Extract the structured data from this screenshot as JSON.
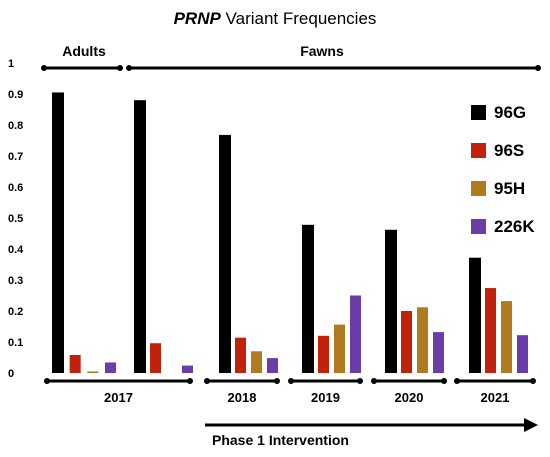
{
  "chart_data": {
    "type": "bar",
    "title_italic": "PRNP",
    "title_rest": " Variant Frequencies",
    "ylim": [
      0,
      1
    ],
    "yticks": [
      "0",
      "0.1",
      "0.2",
      "0.3",
      "0.4",
      "0.5",
      "0.6",
      "0.7",
      "0.8",
      "0.9",
      "1"
    ],
    "groups_top": [
      "Adults",
      "Fawns"
    ],
    "year_labels": [
      "2017",
      "2018",
      "2019",
      "2020",
      "2021"
    ],
    "annotation": "Phase 1 Intervention",
    "legend_position": "right",
    "grid": false,
    "series": [
      {
        "name": "96G",
        "color": "#000000",
        "values": [
          0.905,
          0.88,
          0.768,
          0.478,
          0.462,
          0.372
        ]
      },
      {
        "name": "96S",
        "color": "#c0220c",
        "values": [
          0.058,
          0.096,
          0.114,
          0.12,
          0.2,
          0.274
        ]
      },
      {
        "name": "95H",
        "color": "#b07a20",
        "values": [
          0.005,
          0.0,
          0.07,
          0.156,
          0.212,
          0.232
        ]
      },
      {
        "name": "226K",
        "color": "#6a3da8",
        "values": [
          0.034,
          0.024,
          0.048,
          0.25,
          0.132,
          0.122
        ]
      }
    ],
    "bar_sets": [
      "2017 Adults",
      "2017 Fawns",
      "2018",
      "2019",
      "2020",
      "2021"
    ]
  }
}
